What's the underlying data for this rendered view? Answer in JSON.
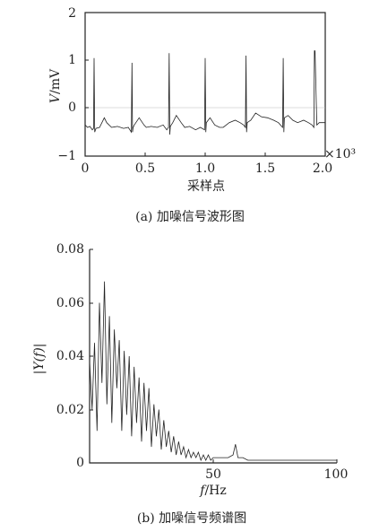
{
  "chart_data": [
    {
      "type": "line",
      "xlabel": "采样点",
      "ylabel_italic": "V",
      "ylabel_rest": "/mV",
      "x_multiplier": "×10³",
      "caption": "(a) 加噪信号波形图",
      "xlim": [
        0,
        2.0
      ],
      "ylim": [
        -1,
        2
      ],
      "xticks": [
        "0",
        "0.5",
        "1.0",
        "1.5",
        "2.0"
      ],
      "yticks": [
        "−1",
        "0",
        "1",
        "2"
      ],
      "series": [
        {
          "description_hidden": true,
          "x": [
            0.0,
            0.02,
            0.04,
            0.06,
            0.07,
            0.075,
            0.08,
            0.09,
            0.12,
            0.16,
            0.18,
            0.22,
            0.27,
            0.32,
            0.36,
            0.385,
            0.39,
            0.395,
            0.4,
            0.41,
            0.45,
            0.49,
            0.51,
            0.55,
            0.6,
            0.65,
            0.68,
            0.695,
            0.7,
            0.705,
            0.71,
            0.73,
            0.76,
            0.8,
            0.83,
            0.87,
            0.92,
            0.96,
            0.995,
            1.0,
            1.005,
            1.01,
            1.04,
            1.08,
            1.12,
            1.15,
            1.2,
            1.25,
            1.29,
            1.32,
            1.335,
            1.34,
            1.345,
            1.35,
            1.38,
            1.42,
            1.47,
            1.52,
            1.57,
            1.61,
            1.645,
            1.65,
            1.655,
            1.66,
            1.69,
            1.73,
            1.77,
            1.82,
            1.86,
            1.89,
            1.905,
            1.91,
            1.915,
            1.93,
            1.95,
            1.97,
            2.0
          ],
          "y": [
            -0.35,
            -0.4,
            -0.38,
            -0.45,
            -0.42,
            1.05,
            -0.5,
            -0.42,
            -0.4,
            -0.2,
            -0.3,
            -0.4,
            -0.38,
            -0.42,
            -0.4,
            -0.5,
            0.95,
            -0.5,
            -0.4,
            -0.35,
            -0.2,
            -0.35,
            -0.4,
            -0.38,
            -0.4,
            -0.35,
            -0.45,
            -0.4,
            1.15,
            -0.55,
            -0.38,
            -0.3,
            -0.15,
            -0.3,
            -0.4,
            -0.38,
            -0.45,
            -0.4,
            -0.45,
            1.05,
            -0.5,
            -0.3,
            -0.2,
            -0.35,
            -0.4,
            -0.4,
            -0.3,
            -0.25,
            -0.3,
            -0.35,
            -0.4,
            1.1,
            -0.5,
            -0.3,
            -0.25,
            -0.1,
            -0.18,
            -0.2,
            -0.25,
            -0.3,
            -0.4,
            1.05,
            -0.5,
            -0.2,
            -0.15,
            -0.25,
            -0.3,
            -0.25,
            -0.3,
            -0.35,
            -0.4,
            1.2,
            1.2,
            -0.35,
            -0.3,
            -0.3,
            -0.3
          ]
        }
      ]
    },
    {
      "type": "line",
      "xlabel_italic": "f",
      "xlabel_rest": "/Hz",
      "ylabel": "|Y(f)|",
      "caption": "(b) 加噪信号频谱图",
      "xlim": [
        0,
        100
      ],
      "ylim": [
        0,
        0.08
      ],
      "xticks": [
        "50",
        "100"
      ],
      "yticks": [
        "0",
        "0.02",
        "0.04",
        "0.06",
        "0.08"
      ],
      "series": [
        {
          "x": [
            0,
            1,
            2,
            3,
            4,
            5,
            6,
            7,
            8,
            9,
            10,
            11,
            12,
            13,
            14,
            15,
            16,
            17,
            18,
            19,
            20,
            21,
            22,
            23,
            24,
            25,
            26,
            27,
            28,
            29,
            30,
            31,
            32,
            33,
            34,
            35,
            36,
            37,
            38,
            39,
            40,
            41,
            42,
            43,
            44,
            45,
            46,
            47,
            48,
            49,
            50,
            52,
            54,
            56,
            58,
            59,
            60,
            61,
            62,
            64,
            66,
            68,
            70,
            72,
            74,
            76,
            78,
            80,
            82,
            84,
            86,
            88,
            90,
            92,
            94,
            96,
            98,
            100
          ],
          "y": [
            0.038,
            0.02,
            0.045,
            0.012,
            0.06,
            0.03,
            0.068,
            0.022,
            0.055,
            0.015,
            0.05,
            0.028,
            0.046,
            0.012,
            0.042,
            0.018,
            0.04,
            0.01,
            0.036,
            0.015,
            0.032,
            0.008,
            0.03,
            0.012,
            0.028,
            0.006,
            0.022,
            0.01,
            0.02,
            0.005,
            0.016,
            0.006,
            0.012,
            0.004,
            0.01,
            0.003,
            0.008,
            0.003,
            0.006,
            0.002,
            0.005,
            0.002,
            0.004,
            0.002,
            0.004,
            0.001,
            0.003,
            0.001,
            0.003,
            0.001,
            0.002,
            0.002,
            0.002,
            0.002,
            0.003,
            0.007,
            0.002,
            0.002,
            0.002,
            0.001,
            0.001,
            0.001,
            0.001,
            0.001,
            0.001,
            0.001,
            0.001,
            0.001,
            0.001,
            0.001,
            0.001,
            0.001,
            0.001,
            0.001,
            0.001,
            0.001,
            0.001,
            0.001
          ]
        }
      ]
    }
  ]
}
